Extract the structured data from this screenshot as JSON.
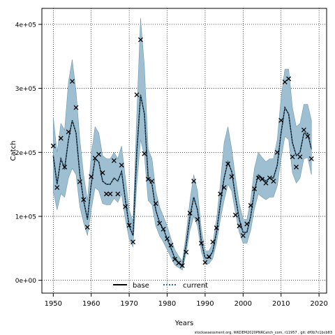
{
  "chart_data": {
    "type": "line",
    "xlabel": "Years",
    "ylabel": "Catch",
    "xlim": [
      1947,
      2022
    ],
    "ylim": [
      -20000,
      425000
    ],
    "x_ticks": [
      1950,
      1960,
      1970,
      1980,
      1990,
      2000,
      2010,
      2020
    ],
    "x_tick_labels": [
      "1950",
      "1960",
      "1970",
      "1980",
      "1990",
      "2000",
      "2010",
      "2020"
    ],
    "y_ticks": [
      0,
      100000,
      200000,
      300000,
      400000
    ],
    "y_tick_labels": [
      "0e+00",
      "1e+05",
      "2e+05",
      "3e+05",
      "4e+05"
    ],
    "grid": true,
    "legend_position": "bottom-center",
    "caption": "stockassessment.org, WKDEM2020PNRCatch_com, r11957 , git: df0b7c1bcb83",
    "colors": {
      "band": "#9dbfd1",
      "band_edge": "#6f9ab2",
      "current": "#2b6f95",
      "base": "#000000"
    },
    "years": [
      1950,
      1951,
      1952,
      1953,
      1954,
      1955,
      1956,
      1957,
      1958,
      1959,
      1960,
      1961,
      1962,
      1963,
      1964,
      1965,
      1966,
      1967,
      1968,
      1969,
      1970,
      1971,
      1972,
      1973,
      1974,
      1975,
      1976,
      1977,
      1978,
      1979,
      1980,
      1981,
      1982,
      1983,
      1984,
      1985,
      1986,
      1987,
      1988,
      1989,
      1990,
      1991,
      1992,
      1993,
      1994,
      1995,
      1996,
      1997,
      1998,
      1999,
      2000,
      2001,
      2002,
      2003,
      2004,
      2005,
      2006,
      2007,
      2008,
      2009,
      2010,
      2011,
      2012,
      2013,
      2014,
      2015,
      2016,
      2017,
      2018
    ],
    "series": [
      {
        "name": "base",
        "values": [
          195000,
          150000,
          190000,
          175000,
          220000,
          250000,
          230000,
          165000,
          125000,
          95000,
          150000,
          190000,
          185000,
          155000,
          150000,
          150000,
          160000,
          155000,
          170000,
          125000,
          85000,
          70000,
          200000,
          290000,
          260000,
          160000,
          150000,
          110000,
          90000,
          80000,
          65000,
          50000,
          35000,
          28000,
          22000,
          55000,
          100000,
          130000,
          110000,
          60000,
          35000,
          35000,
          45000,
          75000,
          120000,
          160000,
          185000,
          170000,
          130000,
          95000,
          75000,
          75000,
          100000,
          140000,
          165000,
          160000,
          155000,
          160000,
          160000,
          180000,
          230000,
          270000,
          260000,
          215000,
          195000,
          200000,
          230000,
          230000,
          205000
        ]
      },
      {
        "name": "current",
        "values": [
          195000,
          150000,
          190000,
          175000,
          220000,
          250000,
          230000,
          165000,
          125000,
          95000,
          150000,
          190000,
          185000,
          155000,
          150000,
          150000,
          160000,
          155000,
          170000,
          125000,
          85000,
          70000,
          200000,
          290000,
          260000,
          160000,
          150000,
          110000,
          90000,
          80000,
          65000,
          50000,
          35000,
          28000,
          22000,
          55000,
          100000,
          130000,
          110000,
          60000,
          35000,
          35000,
          45000,
          75000,
          120000,
          160000,
          185000,
          170000,
          130000,
          95000,
          75000,
          75000,
          100000,
          140000,
          165000,
          160000,
          155000,
          160000,
          160000,
          180000,
          230000,
          270000,
          260000,
          215000,
          195000,
          200000,
          230000,
          230000,
          205000
        ]
      }
    ],
    "band_low": [
      140000,
      110000,
      135000,
      130000,
      160000,
      175000,
      165000,
      115000,
      90000,
      70000,
      110000,
      145000,
      140000,
      120000,
      118000,
      118000,
      128000,
      122000,
      135000,
      95000,
      65000,
      52000,
      150000,
      220000,
      195000,
      125000,
      118000,
      85000,
      70000,
      60000,
      48000,
      36000,
      24000,
      20000,
      16000,
      42000,
      78000,
      100000,
      85000,
      45000,
      26000,
      26000,
      34000,
      58000,
      95000,
      125000,
      150000,
      140000,
      105000,
      75000,
      58000,
      58000,
      78000,
      112000,
      135000,
      130000,
      126000,
      130000,
      130000,
      148000,
      190000,
      225000,
      220000,
      168000,
      152000,
      160000,
      190000,
      192000,
      165000
    ],
    "band_high": [
      255000,
      200000,
      245000,
      235000,
      310000,
      345000,
      295000,
      220000,
      165000,
      125000,
      195000,
      240000,
      230000,
      195000,
      190000,
      190000,
      200000,
      190000,
      210000,
      160000,
      110000,
      92000,
      260000,
      410000,
      335000,
      205000,
      190000,
      140000,
      115000,
      100000,
      85000,
      65000,
      48000,
      38000,
      30000,
      72000,
      125000,
      165000,
      140000,
      80000,
      46000,
      46000,
      58000,
      95000,
      150000,
      215000,
      240000,
      205000,
      160000,
      120000,
      95000,
      95000,
      125000,
      175000,
      200000,
      192000,
      185000,
      190000,
      190000,
      220000,
      285000,
      330000,
      330000,
      270000,
      240000,
      245000,
      275000,
      275000,
      250000
    ],
    "observed_x": [
      1950,
      1951,
      1952,
      1953,
      1954,
      1955,
      1956,
      1957,
      1958,
      1959,
      1960,
      1961,
      1962,
      1963,
      1964,
      1965,
      1966,
      1967,
      1968,
      1969,
      1970,
      1971,
      1972,
      1973,
      1974,
      1975,
      1976,
      1977,
      1978,
      1979,
      1980,
      1981,
      1982,
      1983,
      1984,
      1985,
      1986,
      1987,
      1988,
      1989,
      1990,
      1991,
      1992,
      1993,
      1994,
      1995,
      1996,
      1997,
      1998,
      1999,
      2000,
      2001,
      2002,
      2003,
      2004,
      2005,
      2006,
      2007,
      2008,
      2009,
      2010,
      2011,
      2012,
      2013,
      2014,
      2015,
      2016,
      2017,
      2018
    ],
    "observed_y": [
      210000,
      145000,
      222000,
      177000,
      232000,
      311000,
      270000,
      154000,
      126000,
      83000,
      162000,
      191000,
      197000,
      168000,
      135000,
      135000,
      187000,
      135000,
      180000,
      115000,
      86000,
      60000,
      290000,
      376000,
      198000,
      158000,
      155000,
      120000,
      89000,
      80000,
      65000,
      55000,
      33000,
      27000,
      23000,
      44000,
      105000,
      155000,
      95000,
      58000,
      28000,
      37000,
      60000,
      82000,
      135000,
      145000,
      182000,
      162000,
      102000,
      85000,
      70000,
      88000,
      117000,
      143000,
      160000,
      158000,
      152000,
      160000,
      155000,
      200000,
      250000,
      310000,
      315000,
      193000,
      177000,
      193000,
      235000,
      225000,
      190000
    ]
  },
  "legend": {
    "base_label": "base",
    "current_label": "current"
  }
}
